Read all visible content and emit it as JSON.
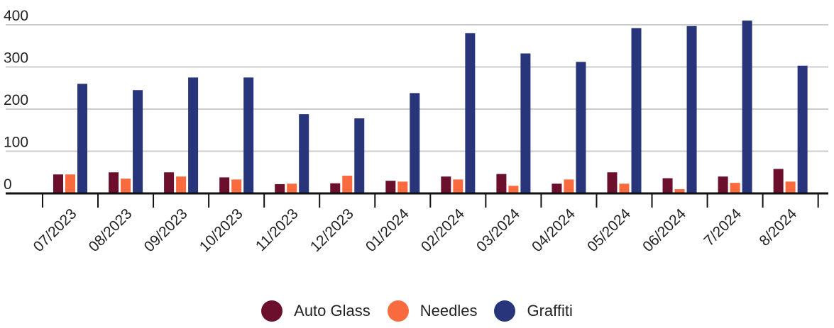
{
  "chart_data": {
    "type": "bar",
    "title": "",
    "xlabel": "",
    "ylabel": "",
    "ylim": [
      0,
      400
    ],
    "yticks": [
      0,
      100,
      200,
      300,
      400
    ],
    "grid": true,
    "legend_position": "bottom",
    "categories": [
      "07/2023",
      "08/2023",
      "09/2023",
      "10/2023",
      "11/2023",
      "12/2023",
      "01/2024",
      "02/2024",
      "03/2024",
      "04/2024",
      "05/2024",
      "06/2024",
      "7/2024",
      "8/2024"
    ],
    "series": [
      {
        "name": "Auto Glass",
        "color": "#6b0f2d",
        "values": [
          45,
          50,
          50,
          38,
          22,
          24,
          30,
          40,
          46,
          23,
          50,
          36,
          40,
          58
        ]
      },
      {
        "name": "Needles",
        "color": "#f96a3f",
        "values": [
          45,
          35,
          40,
          33,
          23,
          42,
          28,
          33,
          18,
          33,
          23,
          10,
          25,
          28
        ]
      },
      {
        "name": "Graffiti",
        "color": "#29357a",
        "values": [
          260,
          245,
          275,
          275,
          188,
          178,
          238,
          380,
          332,
          312,
          392,
          397,
          410,
          303
        ]
      }
    ]
  }
}
